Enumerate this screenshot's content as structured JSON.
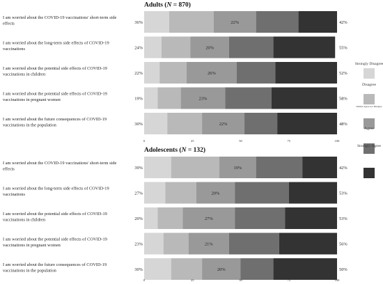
{
  "chart_data": {
    "type": "bar",
    "stacked": true,
    "orientation": "horizontal",
    "xlim": [
      0,
      100
    ],
    "xticks": [
      "0",
      "25",
      "50",
      "75",
      "100"
    ],
    "categories": [
      "I am worried about the COVID-19 vaccinations' short-term side effects",
      "I am worried about the long-term side effects of COVID-19 vaccinations",
      "I am worried about the potential side effects of COVID-19 vaccinations in children",
      "I am worried about the potential side effects of COVID-19 vaccinations in pregnant women",
      "I am worried about the future consequences of COVID-19 vaccinations in the population"
    ],
    "legend": {
      "position": "right",
      "items": [
        {
          "label": "Strongly Disagree",
          "color": "#d6d6d6"
        },
        {
          "label": "Disagree",
          "color": "#b9b9b9"
        },
        {
          "label": "Neither Agree nor Disagree",
          "color": "#999999"
        },
        {
          "label": "Agree",
          "color": "#6f6f6f"
        },
        {
          "label": "Strongly Agree",
          "color": "#333333"
        }
      ]
    },
    "panels": [
      {
        "title_prefix": "Adults (",
        "title_var": "N",
        "title_suffix": " = 870)",
        "left_labels": [
          "36%",
          "24%",
          "22%",
          "19%",
          "30%"
        ],
        "mid_labels": [
          "22%",
          "20%",
          "26%",
          "23%",
          "22%"
        ],
        "right_labels": [
          "42%",
          "55%",
          "52%",
          "58%",
          "48%"
        ],
        "series": [
          {
            "name": "Strongly Disagree",
            "values": [
              13,
              9,
              8,
              7,
              12
            ]
          },
          {
            "name": "Disagree",
            "values": [
              23,
              15,
              14,
              12,
              18
            ]
          },
          {
            "name": "Neither Agree nor Disagree",
            "values": [
              22,
              20,
              26,
              23,
              22
            ]
          },
          {
            "name": "Agree",
            "values": [
              22,
              23,
              20,
              24,
              17
            ]
          },
          {
            "name": "Strongly Agree",
            "values": [
              20,
              32,
              32,
              34,
              31
            ]
          }
        ]
      },
      {
        "title_prefix": "Adolescents (",
        "title_var": "N",
        "title_suffix": " = 132)",
        "left_labels": [
          "39%",
          "27%",
          "20%",
          "23%",
          "30%"
        ],
        "mid_labels": [
          "19%",
          "20%",
          "27%",
          "21%",
          "20%"
        ],
        "right_labels": [
          "42%",
          "53%",
          "53%",
          "56%",
          "50%"
        ],
        "series": [
          {
            "name": "Strongly Disagree",
            "values": [
              14,
              11,
              7,
              10,
              14
            ]
          },
          {
            "name": "Disagree",
            "values": [
              25,
              16,
              13,
              13,
              16
            ]
          },
          {
            "name": "Neither Agree nor Disagree",
            "values": [
              19,
              20,
              27,
              21,
              20
            ]
          },
          {
            "name": "Agree",
            "values": [
              24,
              28,
              26,
              26,
              17
            ]
          },
          {
            "name": "Strongly Agree",
            "values": [
              18,
              25,
              27,
              30,
              33
            ]
          }
        ]
      }
    ]
  }
}
